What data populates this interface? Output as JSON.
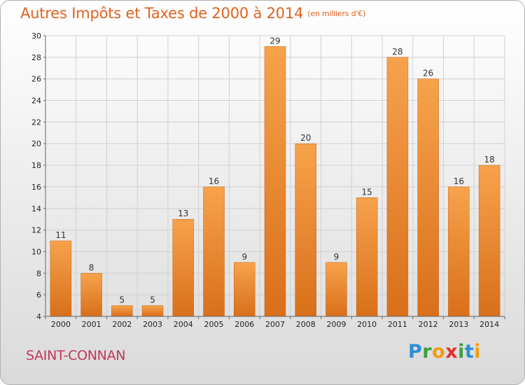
{
  "header": {
    "title": "Autres Impôts et Taxes de 2000 à 2014",
    "subtitle": "(en milliers d'€)"
  },
  "footer": {
    "commune": "SAINT-CONNAN",
    "logo": "Proxiti",
    "logo_letters": [
      "P",
      "r",
      "o",
      "x",
      "i",
      "t",
      "i"
    ],
    "logo_colors": [
      "#2c8fd6",
      "#3ca03c",
      "#f39c12",
      "#e0312e",
      "#3ca03c",
      "#2c8fd6",
      "#f39c12"
    ]
  },
  "chart_data": {
    "type": "bar",
    "categories": [
      "2000",
      "2001",
      "2002",
      "2003",
      "2004",
      "2005",
      "2006",
      "2007",
      "2008",
      "2009",
      "2010",
      "2011",
      "2012",
      "2013",
      "2014"
    ],
    "values": [
      11,
      8,
      5,
      5,
      13,
      16,
      9,
      29,
      20,
      9,
      15,
      28,
      26,
      16,
      18
    ],
    "ylim": [
      4,
      30
    ],
    "yticks": [
      4,
      6,
      8,
      10,
      12,
      14,
      16,
      18,
      20,
      22,
      24,
      26,
      28,
      30
    ],
    "grid": true,
    "bar_color": "#f2943a"
  }
}
